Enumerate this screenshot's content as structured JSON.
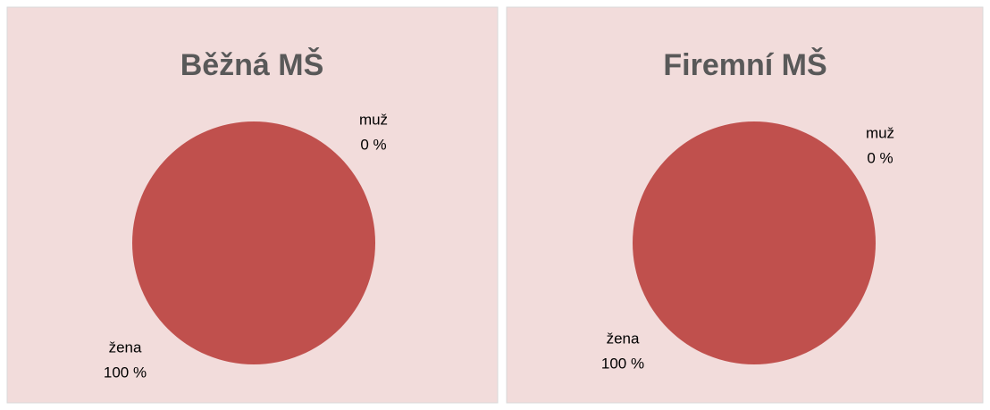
{
  "chart_data": [
    {
      "type": "pie",
      "title": "Běžná MŠ",
      "categories": [
        "muž",
        "žena"
      ],
      "values": [
        0,
        100
      ],
      "value_labels": [
        "0 %",
        "100 %"
      ],
      "colors": [
        "#4f81bd",
        "#c0504d"
      ]
    },
    {
      "type": "pie",
      "title": "Firemní MŠ",
      "categories": [
        "muž",
        "žena"
      ],
      "values": [
        0,
        100
      ],
      "value_labels": [
        "0 %",
        "100 %"
      ],
      "colors": [
        "#4f81bd",
        "#c0504d"
      ]
    }
  ]
}
